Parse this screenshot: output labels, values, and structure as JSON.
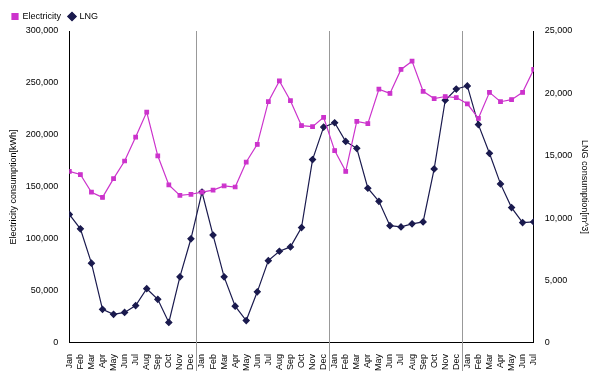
{
  "chart_data": {
    "type": "line",
    "categories": [
      "Jan",
      "Feb",
      "Mar",
      "Apr",
      "May",
      "Jun",
      "Jul",
      "Aug",
      "Sep",
      "Oct",
      "Nov",
      "Dec",
      "Jan",
      "Feb",
      "Mar",
      "Apr",
      "May",
      "Jun",
      "Jul",
      "Aug",
      "Sep",
      "Oct",
      "Nov",
      "Dec",
      "Jan",
      "Feb",
      "Mar",
      "Apr",
      "May",
      "Jun",
      "Jul",
      "Aug",
      "Sep",
      "Oct",
      "Nov",
      "Dec",
      "Jan",
      "Feb",
      "Mar",
      "Apr",
      "May",
      "Jun",
      "Jul"
    ],
    "series": [
      {
        "name": "Electricity",
        "color": "#cc33cc",
        "marker": "square",
        "values": [
          165000,
          162000,
          145000,
          140000,
          158000,
          175000,
          198000,
          222000,
          180000,
          152000,
          142000,
          143000,
          145000,
          147000,
          151000,
          150000,
          174000,
          191000,
          232000,
          252000,
          233000,
          209000,
          208000,
          217000,
          185000,
          165000,
          213000,
          211000,
          244000,
          240000,
          263000,
          271000,
          242000,
          235000,
          237000,
          236000,
          230000,
          216000,
          241000,
          232000,
          234000,
          241000,
          263000
        ]
      },
      {
        "name": "LNG",
        "color": "#1a1a4e",
        "marker": "diamond",
        "axis": "y2",
        "values": [
          10300,
          9150,
          6400,
          2700,
          2300,
          2450,
          3000,
          4350,
          3500,
          1650,
          5300,
          8350,
          12100,
          8650,
          5300,
          2950,
          1800,
          4100,
          6600,
          7350,
          7700,
          9250,
          14700,
          17300,
          17650,
          16150,
          15600,
          12400,
          11350,
          9400,
          9300,
          9550,
          9700,
          13950,
          19450,
          20350,
          20600,
          17500,
          15200,
          12750,
          10850,
          9650,
          9700
        ]
      }
    ],
    "ylabel": "Electricity consumption[kWh]",
    "y2label": "LNG consumption[m^3]",
    "ylim": [
      0,
      300000
    ],
    "yticks": [
      0,
      {
        "value": 50000,
        "label": "50,000"
      },
      {
        "value": 100000,
        "label": "100,000"
      },
      {
        "value": 150000,
        "label": "150,000"
      },
      {
        "value": 200000,
        "label": "200,000"
      },
      {
        "value": 250000,
        "label": "250,000"
      },
      {
        "value": 300000,
        "label": "300,000"
      }
    ],
    "y2lim": [
      0,
      25000
    ],
    "y2ticks": [
      0,
      {
        "value": 5000,
        "label": "5,000"
      },
      {
        "value": 10000,
        "label": "10,000"
      },
      {
        "value": 15000,
        "label": "15,000"
      },
      {
        "value": 20000,
        "label": "20,000"
      },
      {
        "value": 25000,
        "label": "25,000"
      }
    ],
    "grid": false,
    "legend": "upper left"
  }
}
